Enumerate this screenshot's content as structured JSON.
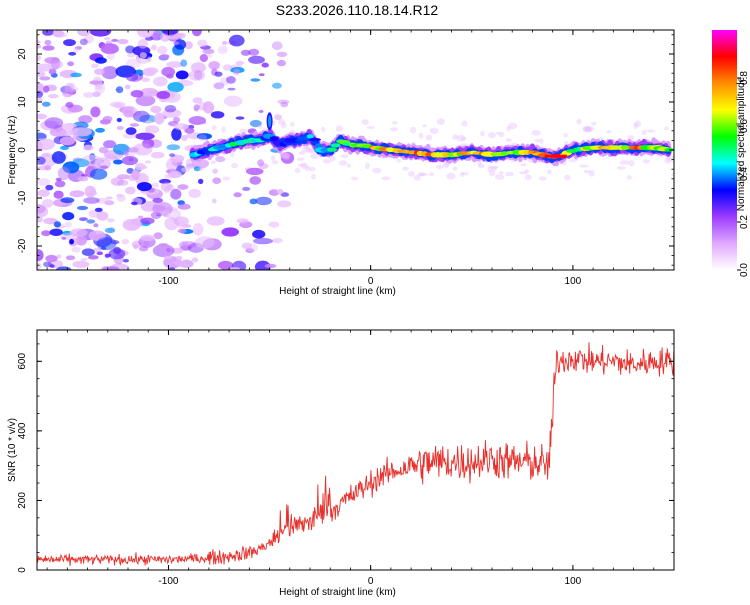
{
  "title": "S233.2026.110.18.14.R12",
  "chart_data": [
    {
      "type": "heatmap",
      "xlabel": "Height of straight line (km)",
      "ylabel": "Frequency (Hz)",
      "xlim": [
        -165,
        150
      ],
      "ylim": [
        -25,
        25
      ],
      "xticks": [
        -100,
        0,
        100
      ],
      "xtick_labels": [
        "-100",
        "0",
        "100"
      ],
      "yticks": [
        -20,
        -10,
        0,
        10,
        20
      ],
      "ytick_labels": [
        "-20",
        "-10",
        "0",
        "10",
        "20"
      ],
      "ridge": {
        "x": [
          -88,
          -80,
          -70,
          -60,
          -55,
          -50,
          -45,
          -40,
          -35,
          -30,
          -25,
          -20,
          -15,
          -10,
          -5,
          0,
          10,
          20,
          30,
          40,
          50,
          60,
          70,
          80,
          90,
          95,
          100,
          110,
          120,
          130,
          140,
          148
        ],
        "freq": [
          -1,
          0,
          1,
          2,
          2,
          3,
          1,
          2,
          2,
          3,
          0,
          0,
          2,
          1,
          1,
          0.5,
          0,
          -0.5,
          -1,
          -1,
          -0.5,
          -1,
          -0.5,
          -0.5,
          -1.5,
          -1,
          0,
          0.5,
          0.5,
          0.5,
          0.5,
          0
        ],
        "amplitude": [
          0.4,
          0.45,
          0.5,
          0.6,
          0.5,
          0.35,
          0.3,
          0.4,
          0.45,
          0.4,
          0.45,
          0.5,
          0.6,
          0.65,
          0.7,
          0.8,
          0.75,
          0.8,
          0.75,
          0.7,
          0.8,
          0.7,
          0.75,
          0.8,
          0.9,
          0.8,
          0.6,
          0.7,
          0.75,
          0.8,
          0.7,
          0.6
        ]
      },
      "noise_region_x": [
        -165,
        -85
      ],
      "colorbar": {
        "label": "Normalized spectral amplitude",
        "range": [
          0,
          1
        ],
        "ticks": [
          0,
          0.2,
          0.4,
          0.6,
          0.8
        ],
        "tick_labels": [
          "0.0",
          "0.2",
          "0.4",
          "0.6",
          "0.8"
        ],
        "colors": [
          "#ffffff",
          "#e0a8ff",
          "#9d3bff",
          "#0000ff",
          "#00ffff",
          "#00ff00",
          "#ffff00",
          "#ff8c00",
          "#ff0000",
          "#ff00ff"
        ]
      }
    },
    {
      "type": "line",
      "xlabel": "Height of straight line (km)",
      "ylabel": "SNR (10 * v/v)",
      "xlim": [
        -165,
        150
      ],
      "ylim": [
        0,
        690
      ],
      "xticks": [
        -100,
        0,
        100
      ],
      "xtick_labels": [
        "-100",
        "0",
        "100"
      ],
      "yticks": [
        0,
        200,
        400,
        600
      ],
      "ytick_labels": [
        "0",
        "200",
        "400",
        "600"
      ],
      "line_color": "#e8302c",
      "series": [
        {
          "x": [
            -165,
            -150,
            -130,
            -110,
            -100,
            -90,
            -80,
            -70,
            -60,
            -55,
            -50,
            -45,
            -40,
            -35,
            -30,
            -25,
            -20,
            -15,
            -10,
            -5,
            0,
            5,
            10,
            20,
            30,
            40,
            50,
            60,
            70,
            80,
            88,
            90,
            92,
            100,
            110,
            120,
            130,
            140,
            150
          ],
          "values": [
            30,
            30,
            30,
            30,
            30,
            32,
            35,
            40,
            50,
            60,
            80,
            100,
            120,
            130,
            140,
            160,
            170,
            190,
            210,
            230,
            250,
            270,
            280,
            300,
            310,
            310,
            310,
            320,
            310,
            310,
            300,
            450,
            600,
            610,
            600,
            600,
            590,
            600,
            600
          ]
        }
      ]
    }
  ]
}
